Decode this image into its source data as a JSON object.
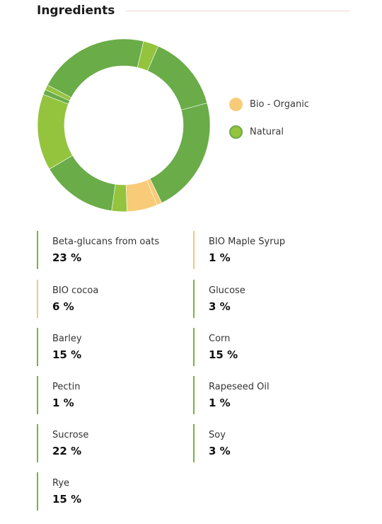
{
  "title": "Ingredients",
  "colors": {
    "organic": "#f7cb78",
    "natural": "#6aac48",
    "natural_light": "#94c43e",
    "border_natural": "#7ab23c",
    "border_organic": "#f5c97c",
    "donut_bg": "#ffffff"
  },
  "legend": [
    {
      "label": "Bio - Organic",
      "type": "organic"
    },
    {
      "label": "Natural",
      "type": "natural"
    }
  ],
  "chart_data": {
    "type": "pie",
    "categories": [
      "Beta-glucans from oats",
      "BIO Maple Syrup",
      "BIO cocoa",
      "Glucose",
      "Barley",
      "Corn",
      "Pectin",
      "Rapeseed Oil",
      "Sucrose",
      "Soy",
      "Rye"
    ],
    "values": [
      23,
      1,
      6,
      3,
      15,
      15,
      1,
      1,
      22,
      3,
      15
    ],
    "slice_types": [
      "natural",
      "organic",
      "organic",
      "natural",
      "natural",
      "natural",
      "natural",
      "natural",
      "natural",
      "natural",
      "natural"
    ],
    "slice_shades": [
      "dark",
      "light",
      "mid",
      "light",
      "dark",
      "light",
      "dark",
      "light",
      "dark",
      "light",
      "dark"
    ],
    "start_angle_deg": 75,
    "legend_position": "right"
  },
  "ingredients": [
    {
      "name": "Beta-glucans from oats",
      "percent": "23 %",
      "type": "natural"
    },
    {
      "name": "BIO Maple Syrup",
      "percent": "1 %",
      "type": "organic"
    },
    {
      "name": "BIO cocoa",
      "percent": "6 %",
      "type": "organic"
    },
    {
      "name": "Glucose",
      "percent": "3 %",
      "type": "natural"
    },
    {
      "name": "Barley",
      "percent": "15 %",
      "type": "natural"
    },
    {
      "name": "Corn",
      "percent": "15 %",
      "type": "natural"
    },
    {
      "name": "Pectin",
      "percent": "1 %",
      "type": "natural"
    },
    {
      "name": "Rapeseed Oil",
      "percent": "1 %",
      "type": "natural"
    },
    {
      "name": "Sucrose",
      "percent": "22 %",
      "type": "natural"
    },
    {
      "name": "Soy",
      "percent": "3 %",
      "type": "natural"
    },
    {
      "name": "Rye",
      "percent": "15 %",
      "type": "natural"
    }
  ]
}
